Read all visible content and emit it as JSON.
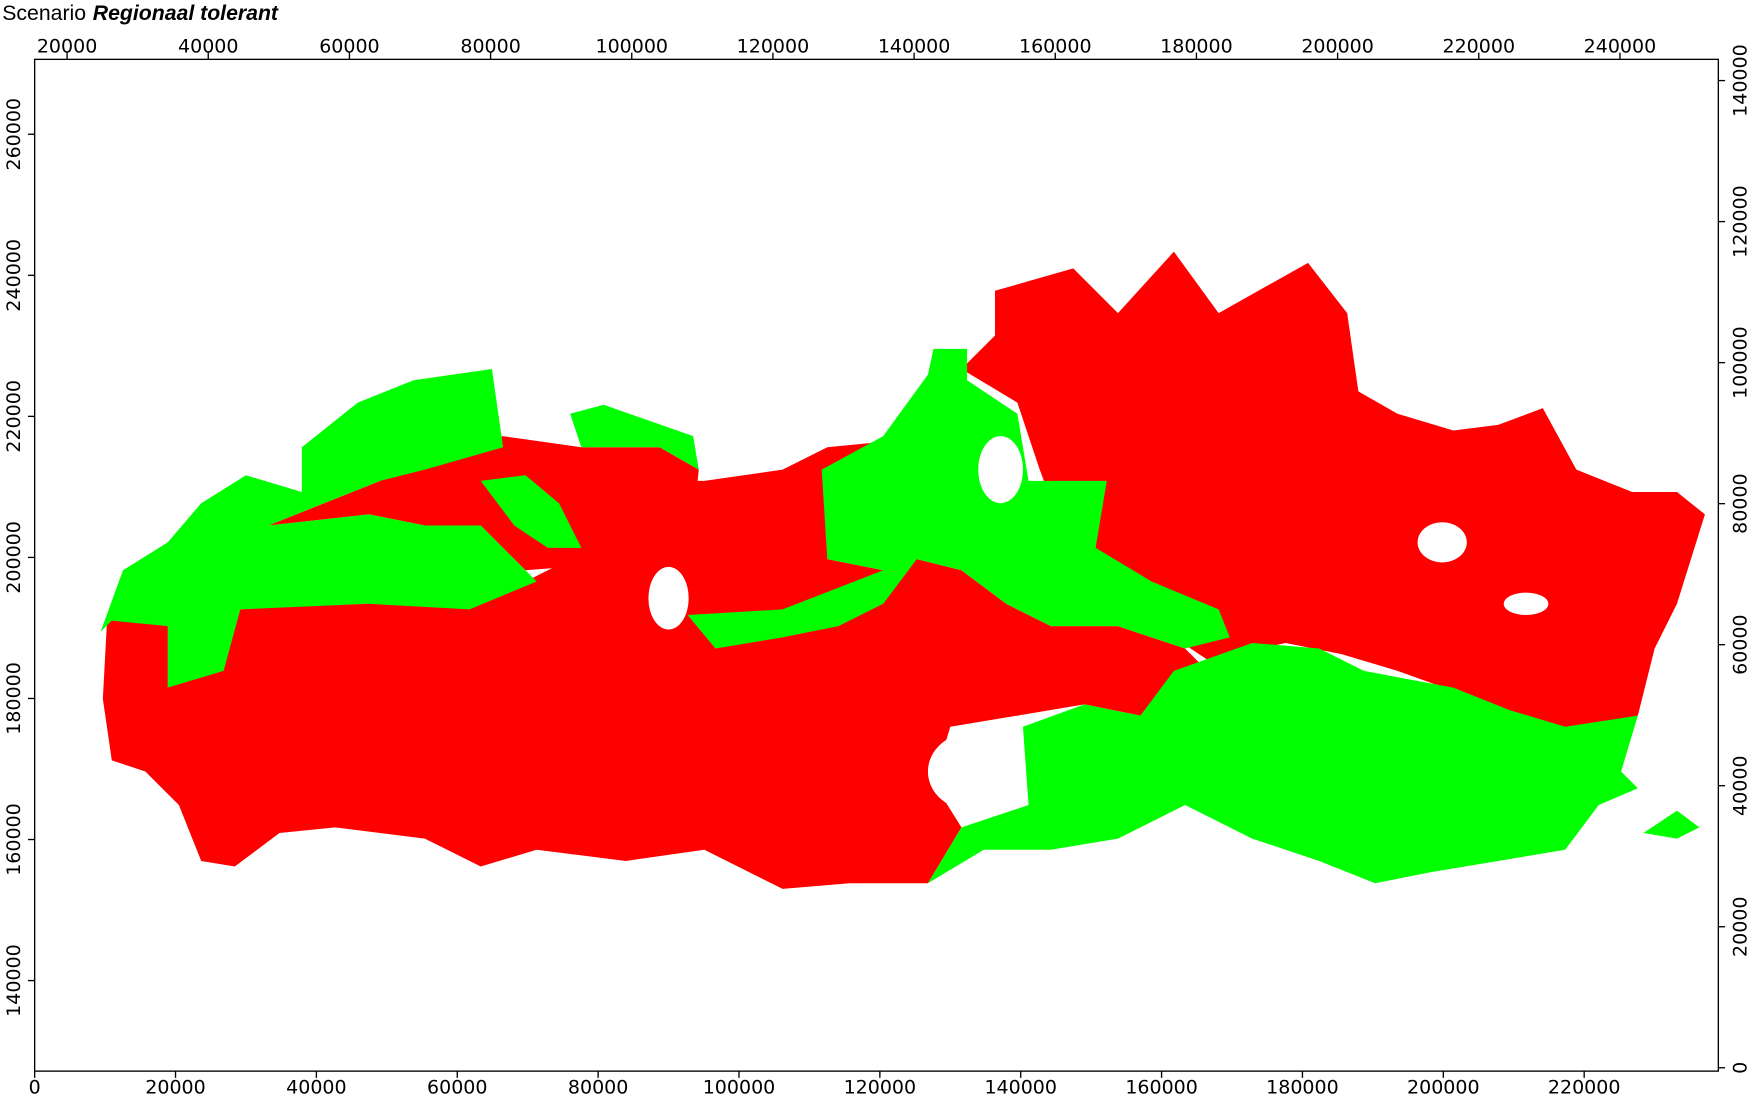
{
  "title": {
    "prefix": "Scenario",
    "emphasis": "Regionaal tolerant"
  },
  "axes": {
    "top": {
      "lim": [
        15407,
        253940
      ],
      "ticks": [
        20000,
        40000,
        60000,
        80000,
        100000,
        120000,
        140000,
        160000,
        180000,
        200000,
        220000,
        240000
      ]
    },
    "bottom": {
      "lim": [
        0,
        239048
      ],
      "ticks": [
        0,
        20000,
        40000,
        60000,
        80000,
        100000,
        120000,
        140000,
        160000,
        180000,
        200000,
        220000
      ]
    },
    "left": {
      "lim": [
        127163,
        270620
      ],
      "ticks": [
        140000,
        160000,
        180000,
        200000,
        220000,
        240000,
        260000
      ]
    },
    "right": {
      "lim": [
        -476,
        143010
      ],
      "ticks": [
        0,
        20000,
        40000,
        60000,
        80000,
        100000,
        120000,
        140000
      ]
    }
  }
}
